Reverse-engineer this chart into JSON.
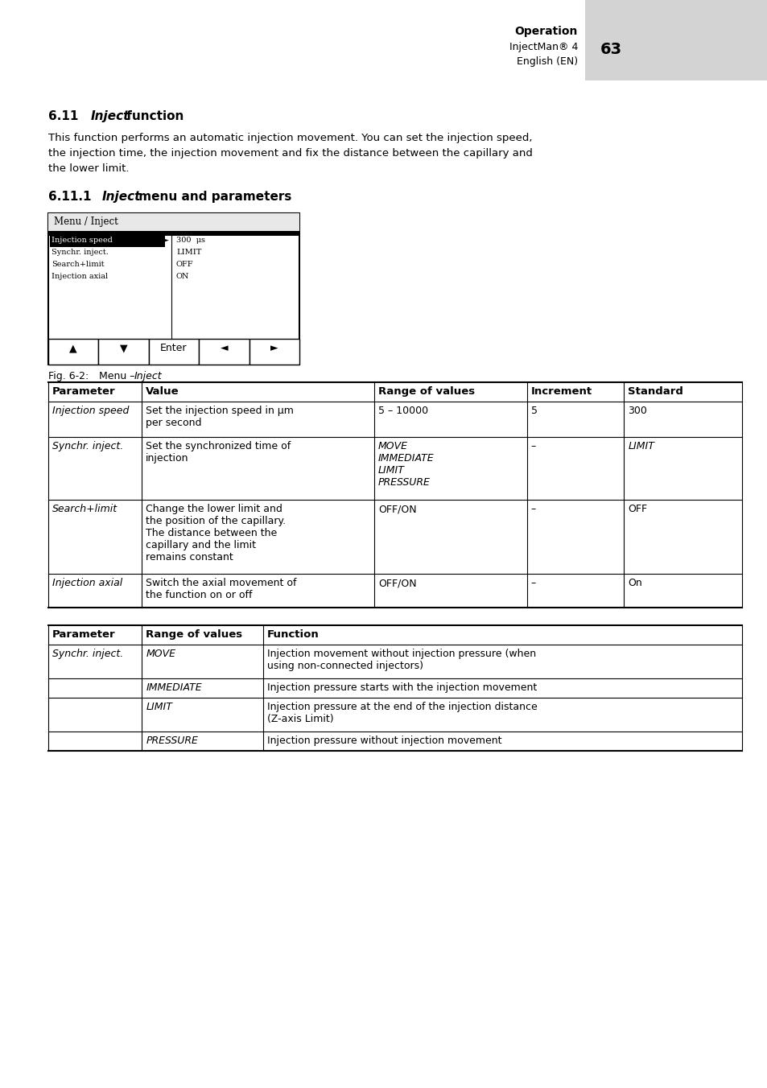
{
  "page_bg": "#ffffff",
  "header_bg": "#d0d0d0",
  "body_text_lines": [
    "This function performs an automatic injection movement. You can set the injection speed,",
    "the injection time, the injection movement and fix the distance between the capillary and",
    "the lower limit."
  ],
  "menu_items_left": [
    "Injection speed",
    "Synchr. inject.",
    "Search+limit",
    "Injection axial"
  ],
  "menu_items_right": [
    "300  μs",
    "LIMIT",
    "OFF",
    "ON"
  ],
  "table1_headers": [
    "Parameter",
    "Value",
    "Range of values",
    "Increment",
    "Standard"
  ],
  "table2_headers": [
    "Parameter",
    "Range of values",
    "Function"
  ]
}
